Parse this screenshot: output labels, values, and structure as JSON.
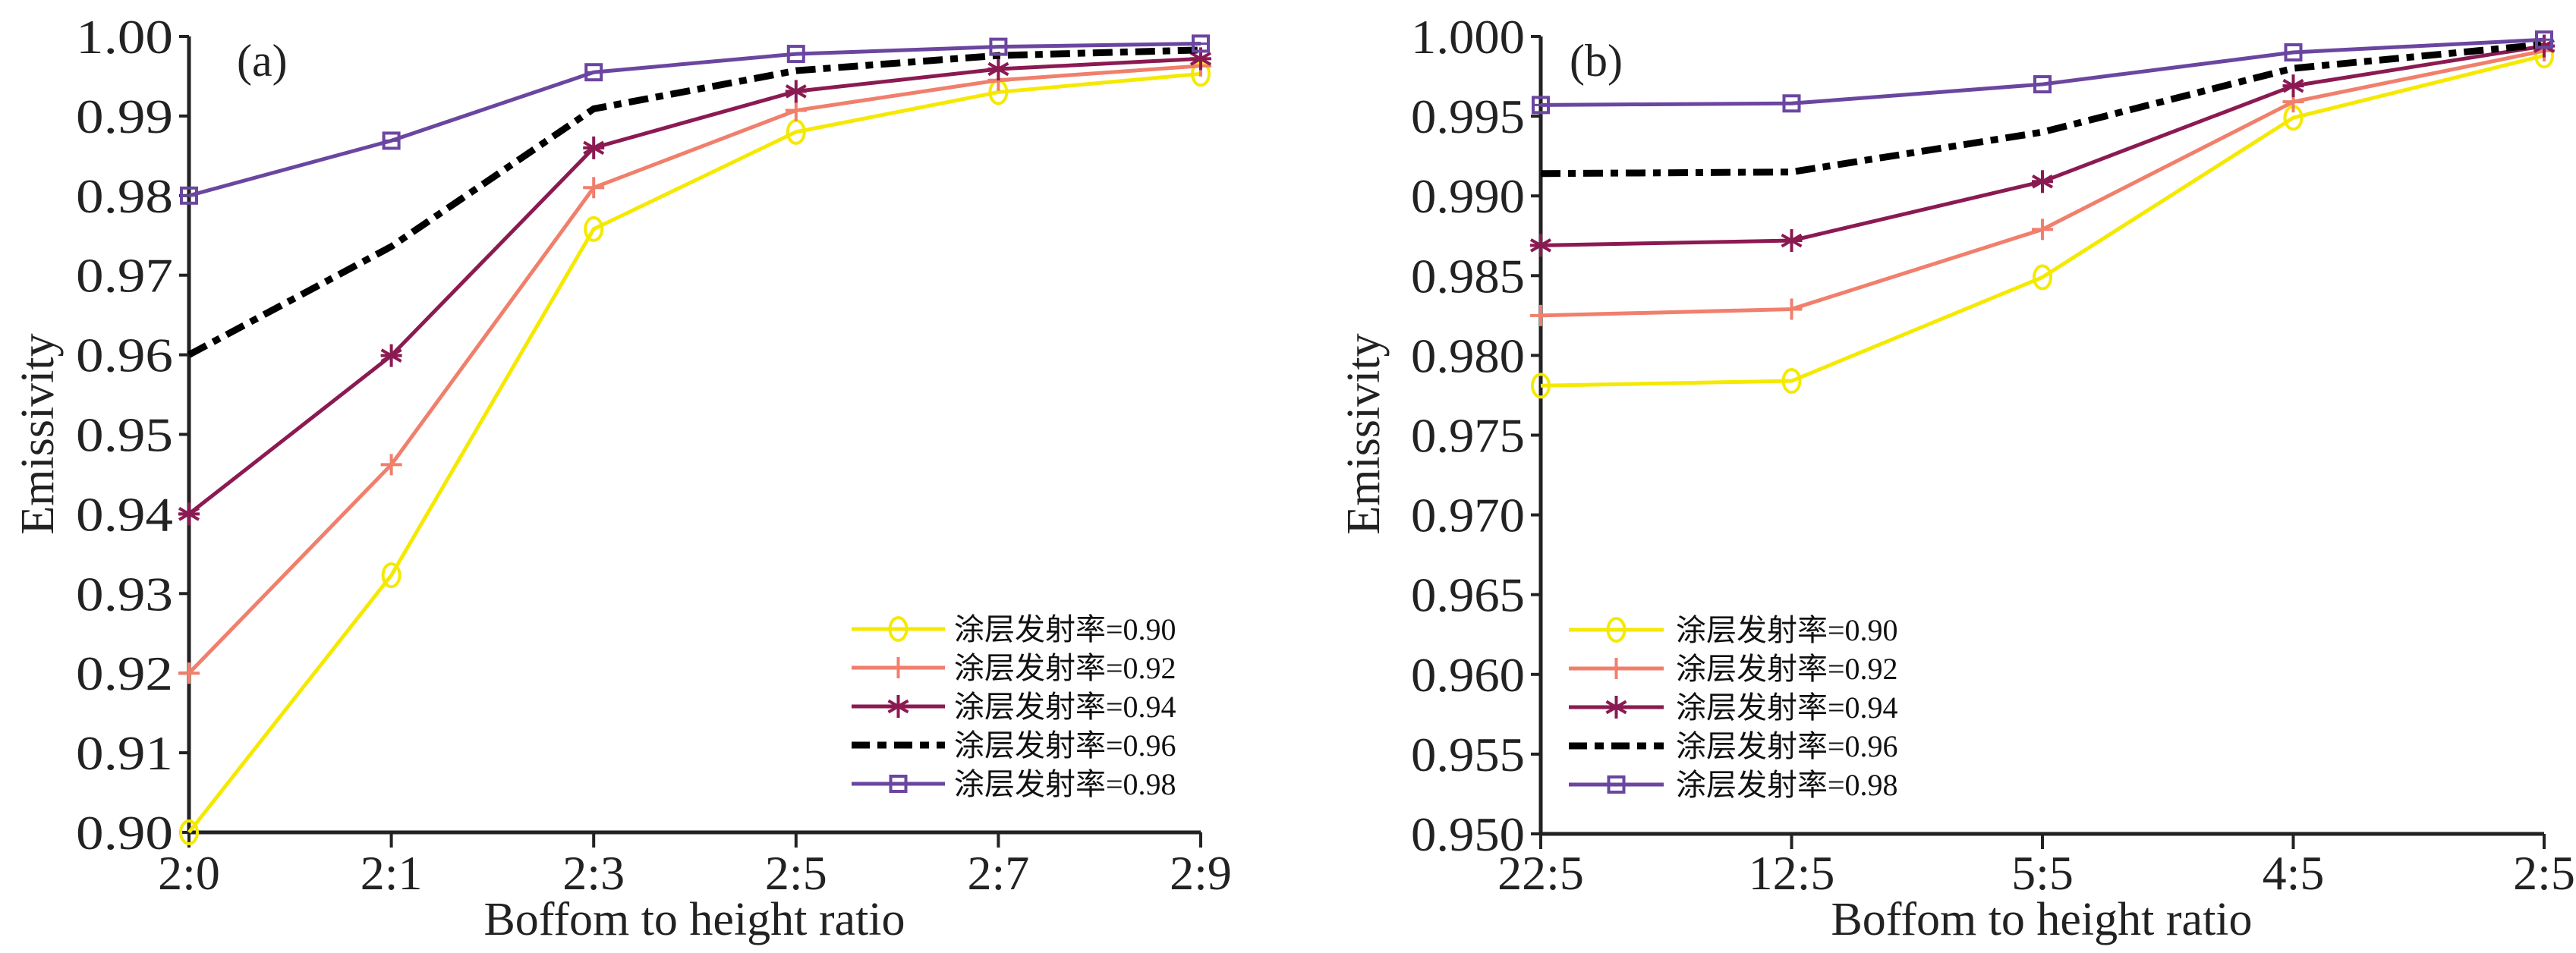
{
  "chart_data": [
    {
      "type": "line",
      "panel_label": "(a)",
      "title": "",
      "xlabel": "Boffom to height ratio",
      "ylabel": "Emissivity",
      "categories": [
        "2:0",
        "2:1",
        "2:3",
        "2:5",
        "2:7",
        "2:9"
      ],
      "ylim": [
        0.9,
        1.0
      ],
      "yticks": [
        0.9,
        0.91,
        0.92,
        0.93,
        0.94,
        0.95,
        0.96,
        0.97,
        0.98,
        0.99,
        1.0
      ],
      "ytick_labels": [
        "0.90",
        "0.91",
        "0.92",
        "0.93",
        "0.94",
        "0.95",
        "0.96",
        "0.97",
        "0.98",
        "0.99",
        "1.00"
      ],
      "grid": false,
      "legend_position": "bottom-right",
      "series": [
        {
          "name": "涂层发射率=0.90",
          "color": "#f5e900",
          "marker": "circle",
          "dash": "solid",
          "values": [
            0.9,
            0.9323,
            0.9758,
            0.988,
            0.993,
            0.9953
          ]
        },
        {
          "name": "涂层发射率=0.92",
          "color": "#f07f6c",
          "marker": "plus",
          "dash": "solid",
          "values": [
            0.92,
            0.9462,
            0.981,
            0.9907,
            0.9945,
            0.9963
          ]
        },
        {
          "name": "涂层发射率=0.94",
          "color": "#8b1a52",
          "marker": "asterisk",
          "dash": "solid",
          "values": [
            0.94,
            0.9599,
            0.986,
            0.9931,
            0.9959,
            0.9972
          ]
        },
        {
          "name": "涂层发射率=0.96",
          "color": "#000000",
          "marker": "none",
          "dash": "dashdot",
          "values": [
            0.96,
            0.9736,
            0.9909,
            0.9957,
            0.9976,
            0.9983
          ]
        },
        {
          "name": "涂层发射率=0.98",
          "color": "#6a46a0",
          "marker": "square",
          "dash": "solid",
          "values": [
            0.98,
            0.9869,
            0.9955,
            0.9978,
            0.9987,
            0.9991
          ]
        }
      ]
    },
    {
      "type": "line",
      "panel_label": "(b)",
      "title": "",
      "xlabel": "Boffom to height ratio",
      "ylabel": "Emissivity",
      "categories": [
        "22:5",
        "12:5",
        "5:5",
        "4:5",
        "2:5"
      ],
      "ylim": [
        0.95,
        1.0
      ],
      "yticks": [
        0.95,
        0.955,
        0.96,
        0.965,
        0.97,
        0.975,
        0.98,
        0.985,
        0.99,
        0.995,
        1.0
      ],
      "ytick_labels": [
        "0.950",
        "0.955",
        "0.960",
        "0.965",
        "0.970",
        "0.975",
        "0.980",
        "0.985",
        "0.990",
        "0.995",
        "1.000"
      ],
      "grid": false,
      "legend_position": "bottom-left",
      "series": [
        {
          "name": "涂层发射率=0.90",
          "color": "#f5e900",
          "marker": "circle",
          "dash": "solid",
          "values": [
            0.9781,
            0.9784,
            0.9849,
            0.9949,
            0.9988
          ]
        },
        {
          "name": "涂层发射率=0.92",
          "color": "#f07f6c",
          "marker": "plus",
          "dash": "solid",
          "values": [
            0.9825,
            0.9829,
            0.9879,
            0.9959,
            0.9991
          ]
        },
        {
          "name": "涂层发射率=0.94",
          "color": "#8b1a52",
          "marker": "asterisk",
          "dash": "solid",
          "values": [
            0.9869,
            0.9872,
            0.9909,
            0.9969,
            0.9994
          ]
        },
        {
          "name": "涂层发射率=0.96",
          "color": "#000000",
          "marker": "none",
          "dash": "dashdot",
          "values": [
            0.9914,
            0.9915,
            0.994,
            0.998,
            0.9995
          ]
        },
        {
          "name": "涂层发射率=0.98",
          "color": "#6a46a0",
          "marker": "square",
          "dash": "solid",
          "values": [
            0.9957,
            0.9958,
            0.997,
            0.999,
            0.9998
          ]
        }
      ]
    }
  ]
}
